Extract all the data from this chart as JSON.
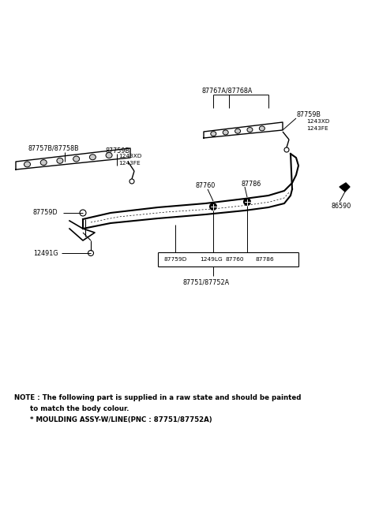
{
  "bg_color": "#ffffff",
  "text_color": "#000000",
  "note_line1": "NOTE : The following part is supplied in a raw state and should be painted",
  "note_line2": "to match the body colour.",
  "note_line3": "* MOULDING ASSY-W/LINE(PNC : 87751/87752A)",
  "note_fontsize": 6.2,
  "fig_width": 4.8,
  "fig_height": 6.57,
  "dpi": 100
}
